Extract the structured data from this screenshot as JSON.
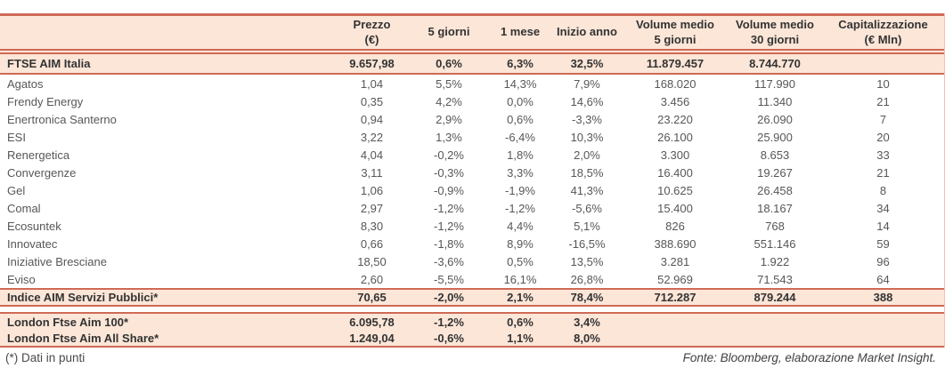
{
  "chart_data": {
    "type": "table",
    "header_lines": [
      [
        ""
      ],
      [
        "Prezzo",
        "(€)"
      ],
      [
        "5 giorni"
      ],
      [
        "1 mese"
      ],
      [
        "Inizio anno"
      ],
      [
        "Volume medio",
        "5 giorni"
      ],
      [
        "Volume medio",
        "30 giorni"
      ],
      [
        "Capitalizzazione",
        "(€ Mln)"
      ]
    ],
    "index_row": {
      "name": "FTSE AIM Italia",
      "values": [
        "9.657,98",
        "0,6%",
        "6,3%",
        "32,5%",
        "11.879.457",
        "8.744.770",
        ""
      ]
    },
    "stock_rows": [
      {
        "name": "Agatos",
        "values": [
          "1,04",
          "5,5%",
          "14,3%",
          "7,9%",
          "168.020",
          "117.990",
          "10"
        ]
      },
      {
        "name": "Frendy Energy",
        "values": [
          "0,35",
          "4,2%",
          "0,0%",
          "14,6%",
          "3.456",
          "11.340",
          "21"
        ]
      },
      {
        "name": "Enertronica Santerno",
        "values": [
          "0,94",
          "2,9%",
          "0,6%",
          "-3,3%",
          "23.220",
          "26.090",
          "7"
        ]
      },
      {
        "name": "ESI",
        "values": [
          "3,22",
          "1,3%",
          "-6,4%",
          "10,3%",
          "26.100",
          "25.900",
          "20"
        ]
      },
      {
        "name": "Renergetica",
        "values": [
          "4,04",
          "-0,2%",
          "1,8%",
          "2,0%",
          "3.300",
          "8.653",
          "33"
        ]
      },
      {
        "name": "Convergenze",
        "values": [
          "3,11",
          "-0,3%",
          "3,3%",
          "18,5%",
          "16.400",
          "19.267",
          "21"
        ]
      },
      {
        "name": "Gel",
        "values": [
          "1,06",
          "-0,9%",
          "-1,9%",
          "41,3%",
          "10.625",
          "26.458",
          "8"
        ]
      },
      {
        "name": "Comal",
        "values": [
          "2,97",
          "-1,2%",
          "-1,2%",
          "-5,6%",
          "15.400",
          "18.167",
          "34"
        ]
      },
      {
        "name": "Ecosuntek",
        "values": [
          "8,30",
          "-1,2%",
          "4,4%",
          "5,1%",
          "826",
          "768",
          "14"
        ]
      },
      {
        "name": "Innovatec",
        "values": [
          "0,66",
          "-1,8%",
          "8,9%",
          "-16,5%",
          "388.690",
          "551.146",
          "59"
        ]
      },
      {
        "name": "Iniziative Bresciane",
        "values": [
          "18,50",
          "-3,6%",
          "0,5%",
          "13,5%",
          "3.281",
          "1.922",
          "96"
        ]
      },
      {
        "name": "Eviso",
        "values": [
          "2,60",
          "-5,5%",
          "16,1%",
          "26,8%",
          "52.969",
          "71.543",
          "64"
        ]
      }
    ],
    "subindex_row": {
      "name": "Indice AIM Servizi Pubblici*",
      "values": [
        "70,65",
        "-2,0%",
        "2,1%",
        "78,4%",
        "712.287",
        "879.244",
        "388"
      ]
    },
    "london_rows": [
      {
        "name": "London Ftse Aim 100*",
        "values": [
          "6.095,78",
          "-1,2%",
          "0,6%",
          "3,4%",
          "",
          "",
          ""
        ]
      },
      {
        "name": "London Ftse Aim All Share*",
        "values": [
          "1.249,04",
          "-0,6%",
          "1,1%",
          "8,0%",
          "",
          "",
          ""
        ]
      }
    ]
  },
  "footer": {
    "note": "(*) Dati in punti",
    "source": "Fonte: Bloomberg, elaborazione Market Insight."
  },
  "colors": {
    "accent": "#cf6a56",
    "band_bg": "#fce6d8",
    "header_text": "#333333",
    "row_text": "#575757",
    "bold_text": "#333333"
  }
}
